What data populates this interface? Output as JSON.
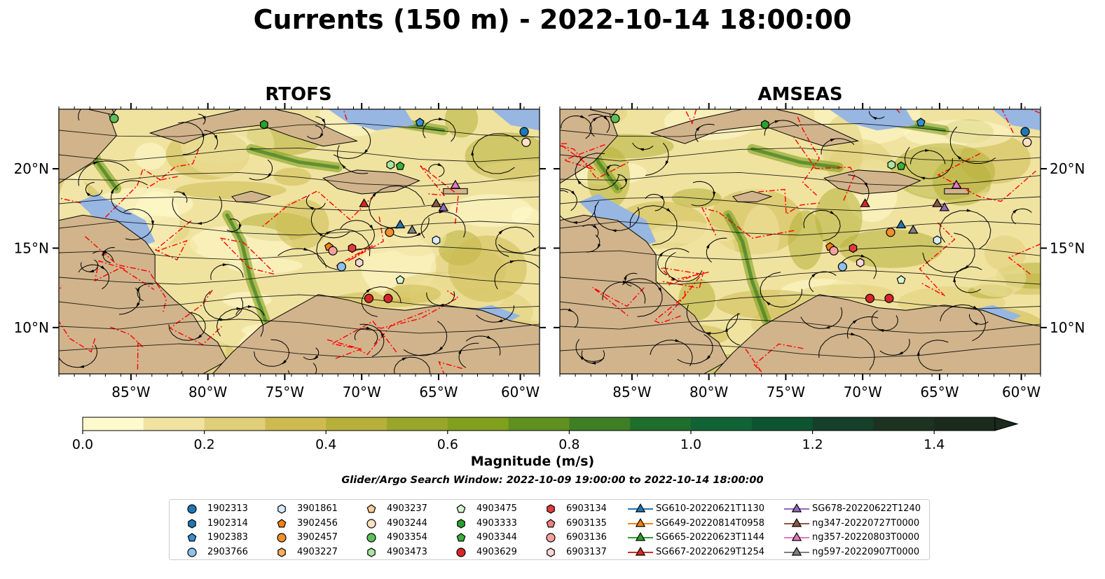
{
  "title": "Currents (150 m) - 2022-10-14 18:00:00",
  "colors": {
    "land": "#d1b48c",
    "water_shallow": "#97b6e1",
    "front_line": "#ff0000",
    "cmap": [
      "#fffacd",
      "#f0e3a0",
      "#e0cf7a",
      "#cdbb52",
      "#b6b03a",
      "#9aa62a",
      "#80a01e",
      "#5f9020",
      "#3f7f24",
      "#1e6e2c",
      "#106334",
      "#0d5530",
      "#15402a",
      "#1b3320",
      "#1a2a1b"
    ]
  },
  "chart_data": [
    {
      "type": "streamplot-map",
      "title": "RTOFS",
      "xticks": [
        "85°W",
        "80°W",
        "75°W",
        "70°W",
        "65°W",
        "60°W"
      ],
      "yticks": [
        "20°N",
        "15°N",
        "10°N"
      ],
      "xlim": [
        -89,
        -58
      ],
      "ylim": [
        7,
        24
      ],
      "legend": "bottom"
    },
    {
      "type": "streamplot-map",
      "title": "AMSEAS",
      "xticks": [
        "85°W",
        "80°W",
        "75°W",
        "70°W",
        "65°W",
        "60°W"
      ],
      "yticks": [
        "20°N",
        "15°N",
        "10°N"
      ],
      "xlim": [
        -89,
        -58
      ],
      "ylim": [
        7,
        24
      ],
      "legend": "bottom"
    }
  ],
  "colorbar": {
    "label": "Magnitude (m/s)",
    "ticks": [
      "0.0",
      "0.2",
      "0.4",
      "0.6",
      "0.8",
      "1.0",
      "1.2",
      "1.4"
    ],
    "range": [
      0,
      1.5
    ],
    "extend": "max"
  },
  "search_window": "Glider/Argo Search Window: 2022-10-09 19:00:00 to 2022-10-14 18:00:00",
  "legend": [
    {
      "label": "1902313",
      "marker": "circle",
      "color": "#1f77b4"
    },
    {
      "label": "1902314",
      "marker": "hexagon",
      "color": "#1f77b4"
    },
    {
      "label": "1902383",
      "marker": "pentagon",
      "color": "#3a8dd0"
    },
    {
      "label": "2903766",
      "marker": "circle",
      "color": "#8fc1ec"
    },
    {
      "label": "3901861",
      "marker": "hexagon",
      "color": "#d7ecff"
    },
    {
      "label": "3902456",
      "marker": "pentagon",
      "color": "#ff7f0e"
    },
    {
      "label": "3902457",
      "marker": "circle",
      "color": "#f28e2b"
    },
    {
      "label": "4903227",
      "marker": "hexagon",
      "color": "#ffad5a"
    },
    {
      "label": "4903237",
      "marker": "pentagon",
      "color": "#ffcf99"
    },
    {
      "label": "4903244",
      "marker": "circle",
      "color": "#ffe0c4"
    },
    {
      "label": "4903354",
      "marker": "circle",
      "color": "#5cbf5c"
    },
    {
      "label": "4903473",
      "marker": "hexagon",
      "color": "#a8e6a0"
    },
    {
      "label": "4903475",
      "marker": "pentagon",
      "color": "#d8f5d0"
    },
    {
      "label": "4903333",
      "marker": "hexagon",
      "color": "#2ca02c"
    },
    {
      "label": "4903344",
      "marker": "pentagon",
      "color": "#3cae3c"
    },
    {
      "label": "4903629",
      "marker": "circle",
      "color": "#d62728"
    },
    {
      "label": "6903134",
      "marker": "hexagon",
      "color": "#e03c3c"
    },
    {
      "label": "6903135",
      "marker": "pentagon",
      "color": "#f08080"
    },
    {
      "label": "6903136",
      "marker": "circle",
      "color": "#f4a0a0"
    },
    {
      "label": "6903137",
      "marker": "hexagon",
      "color": "#fcd5d5"
    },
    {
      "label": "SG610-20220621T1130",
      "marker": "triangle-line",
      "color": "#1f77b4"
    },
    {
      "label": "SG649-20220814T0958",
      "marker": "triangle-line",
      "color": "#ff7f0e"
    },
    {
      "label": "SG665-20220623T1144",
      "marker": "triangle-line",
      "color": "#2ca02c"
    },
    {
      "label": "SG667-20220629T1254",
      "marker": "triangle-line",
      "color": "#d62728"
    },
    {
      "label": "SG678-20220622T1240",
      "marker": "triangle-line",
      "color": "#9467bd"
    },
    {
      "label": "ng347-20220727T0000",
      "marker": "triangle-line",
      "color": "#8c564b"
    },
    {
      "label": "ng357-20220803T0000",
      "marker": "triangle-line",
      "color": "#e377c2"
    },
    {
      "label": "ng597-20220907T0000",
      "marker": "triangle-line",
      "color": "#7f7f7f"
    }
  ]
}
